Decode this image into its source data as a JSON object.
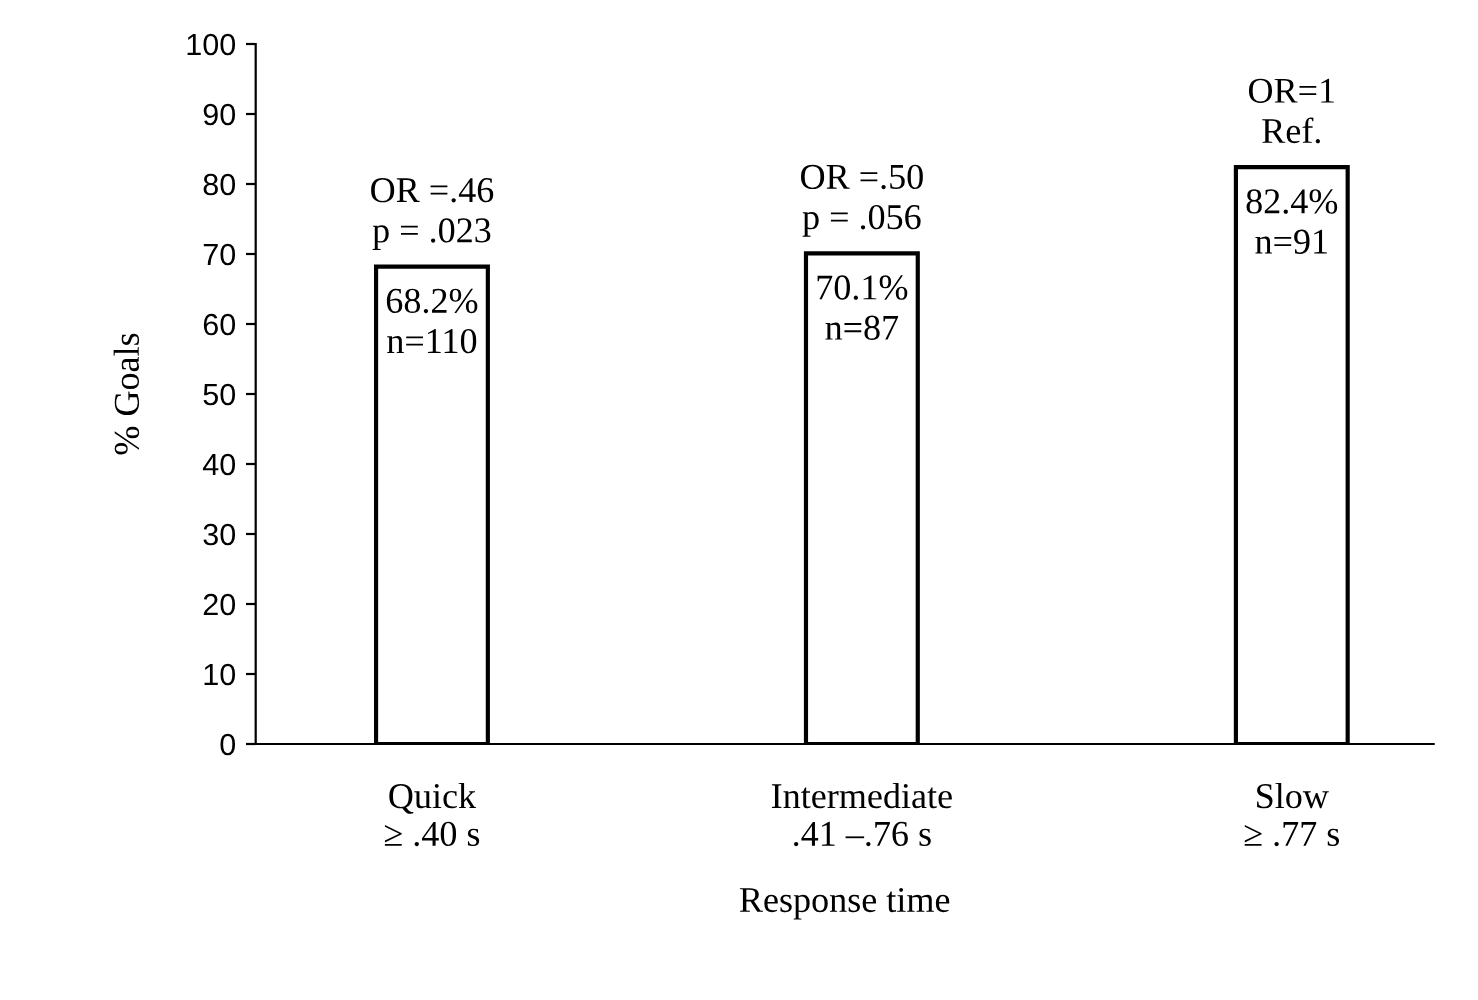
{
  "chart_data": {
    "type": "bar",
    "xlabel": "Response time",
    "ylabel": "% Goals",
    "categories": [
      "Quick\n≥ .40 s",
      "Intermediate\n.41 –.76 s",
      "Slow\n≥ .77 s"
    ],
    "values": [
      68.2,
      70.1,
      82.4
    ],
    "value_labels": [
      "68.2%\nn=110",
      "70.1%\nn=87",
      "82.4%\nn=91"
    ],
    "color": "#ffffff",
    "ylim": [
      0,
      100
    ],
    "yticks": [
      0,
      10,
      20,
      30,
      40,
      50,
      60,
      70,
      80,
      90,
      100
    ],
    "grid": false,
    "legend": false,
    "annotations": [
      {
        "text": "OR =.46\np = .023",
        "x": "Quick\n≥ .40 s",
        "y": 68.2
      },
      {
        "text": "OR =.50\np = .056",
        "x": "Intermediate\n.41 –.76 s",
        "y": 70.1
      },
      {
        "text": "OR=1\nRef.",
        "x": "Slow\n≥ .77 s",
        "y": 82.4
      }
    ]
  }
}
